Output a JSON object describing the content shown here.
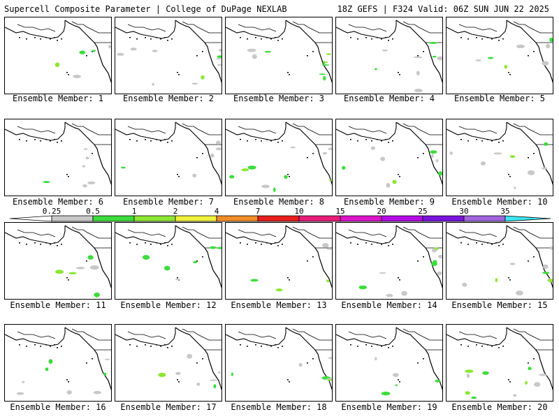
{
  "header": {
    "left": "Supercell Composite Parameter | College of DuPage NEXLAB",
    "right": "18Z GEFS | F324 Valid: 06Z SUN JUN 22 2025"
  },
  "colorbar": {
    "labels": [
      "0.25",
      "0.5",
      "1",
      "2",
      "4",
      "7",
      "10",
      "15",
      "20",
      "25",
      "30",
      "35"
    ],
    "colors": [
      "#ffffff",
      "#c8c8c8",
      "#3cdc3c",
      "#8ce632",
      "#f0f03c",
      "#f08c28",
      "#e61e1e",
      "#e61e78",
      "#dc14c8",
      "#b40ae6",
      "#7814dc",
      "#a064dc",
      "#3ce6f0"
    ]
  },
  "members": [
    {
      "label": "Ensemble Member: 1"
    },
    {
      "label": "Ensemble Member: 2"
    },
    {
      "label": "Ensemble Member: 3"
    },
    {
      "label": "Ensemble Member: 4"
    },
    {
      "label": "Ensemble Member: 5"
    },
    {
      "label": "Ensemble Member: 6"
    },
    {
      "label": "Ensemble Member: 7"
    },
    {
      "label": "Ensemble Member: 8"
    },
    {
      "label": "Ensemble Member: 9"
    },
    {
      "label": "Ensemble Member: 10"
    },
    {
      "label": "Ensemble Member: 11"
    },
    {
      "label": "Ensemble Member: 12"
    },
    {
      "label": "Ensemble Member: 13"
    },
    {
      "label": "Ensemble Member: 14"
    },
    {
      "label": "Ensemble Member: 15"
    },
    {
      "label": "Ensemble Member: 16"
    },
    {
      "label": "Ensemble Member: 17"
    },
    {
      "label": "Ensemble Member: 18"
    },
    {
      "label": "Ensemble Member: 19"
    },
    {
      "label": "Ensemble Member: 20"
    }
  ]
}
